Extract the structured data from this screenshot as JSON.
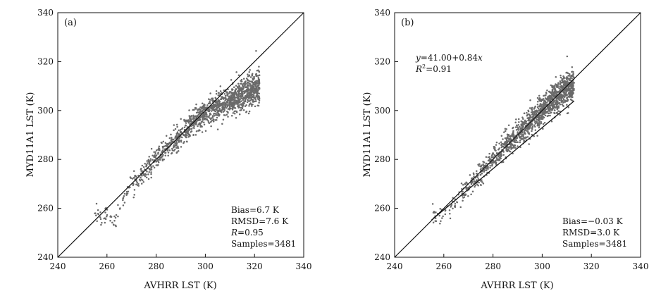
{
  "chart_data": [
    {
      "type": "scatter",
      "panel_label": "(a)",
      "xlabel": "AVHRR LST (K)",
      "ylabel": "MYD11A1 LST (K)",
      "xlim": [
        240,
        340
      ],
      "ylim": [
        240,
        340
      ],
      "xticks": [
        240,
        260,
        280,
        300,
        320,
        340
      ],
      "yticks": [
        240,
        260,
        280,
        300,
        320,
        340
      ],
      "reference_line": {
        "name": "1:1",
        "points": [
          [
            240,
            240
          ],
          [
            340,
            340
          ]
        ]
      },
      "point_color": "#6a6a6a",
      "samples": 3481,
      "point_cloud": {
        "x_range": [
          255,
          322
        ],
        "points": [
          [
            256,
            257
          ],
          [
            257,
            256
          ],
          [
            259,
            256
          ],
          [
            261,
            258
          ],
          [
            262,
            254
          ],
          [
            264,
            256
          ],
          [
            266,
            262
          ],
          [
            268,
            266
          ],
          [
            270,
            270
          ],
          [
            272,
            271
          ],
          [
            274,
            273
          ],
          [
            276,
            276
          ],
          [
            278,
            278
          ],
          [
            280,
            281
          ],
          [
            282,
            283
          ],
          [
            284,
            285
          ],
          [
            286,
            286
          ],
          [
            288,
            288
          ],
          [
            290,
            290
          ],
          [
            292,
            292
          ],
          [
            294,
            294
          ],
          [
            296,
            296
          ],
          [
            298,
            297
          ],
          [
            300,
            299
          ],
          [
            302,
            300
          ],
          [
            304,
            301
          ],
          [
            306,
            302
          ],
          [
            308,
            303
          ],
          [
            310,
            304
          ],
          [
            312,
            305
          ],
          [
            314,
            306
          ],
          [
            316,
            307
          ],
          [
            318,
            308
          ],
          [
            320,
            309
          ],
          [
            322,
            310
          ]
        ]
      },
      "stats": [
        "Bias=6.7 K",
        "RMSD=7.6 K",
        "=0.95",
        "Samples=3481"
      ],
      "stats_italic_prefix": [
        "",
        "",
        "R",
        ""
      ]
    },
    {
      "type": "scatter",
      "panel_label": "(b)",
      "xlabel": "AVHRR LST (K)",
      "ylabel": "MYD11A1 LST (K)",
      "xlim": [
        240,
        340
      ],
      "ylim": [
        240,
        340
      ],
      "xticks": [
        240,
        260,
        280,
        300,
        320,
        340
      ],
      "yticks": [
        240,
        260,
        280,
        300,
        320,
        340
      ],
      "reference_line": {
        "name": "1:1",
        "points": [
          [
            240,
            240
          ],
          [
            340,
            340
          ]
        ]
      },
      "fit_line": {
        "intercept": 41.0,
        "slope": 0.84,
        "x_range": [
          255,
          313
        ]
      },
      "point_color": "#6a6a6a",
      "samples": 3481,
      "point_cloud": {
        "x_range": [
          255,
          313
        ],
        "points": [
          [
            256,
            256
          ],
          [
            258,
            255
          ],
          [
            260,
            257
          ],
          [
            262,
            260
          ],
          [
            264,
            262
          ],
          [
            266,
            264
          ],
          [
            268,
            266
          ],
          [
            270,
            269
          ],
          [
            272,
            271
          ],
          [
            274,
            273
          ],
          [
            276,
            276
          ],
          [
            278,
            278
          ],
          [
            280,
            280
          ],
          [
            282,
            282
          ],
          [
            284,
            285
          ],
          [
            286,
            287
          ],
          [
            288,
            288
          ],
          [
            290,
            290
          ],
          [
            292,
            292
          ],
          [
            294,
            294
          ],
          [
            296,
            296
          ],
          [
            298,
            298
          ],
          [
            300,
            300
          ],
          [
            302,
            302
          ],
          [
            304,
            304
          ],
          [
            306,
            305
          ],
          [
            308,
            307
          ],
          [
            310,
            309
          ],
          [
            312,
            310
          ],
          [
            313,
            311
          ]
        ]
      },
      "equation": {
        "line1_prefix": "y",
        "line1_rest": "=41.00+0.84",
        "line1_suffix": "x",
        "line2_prefix": "R",
        "line2_sup": "2",
        "line2_rest": "=0.91"
      },
      "stats": [
        "Bias=−0.03 K",
        "RMSD=3.0 K",
        "Samples=3481"
      ]
    }
  ]
}
